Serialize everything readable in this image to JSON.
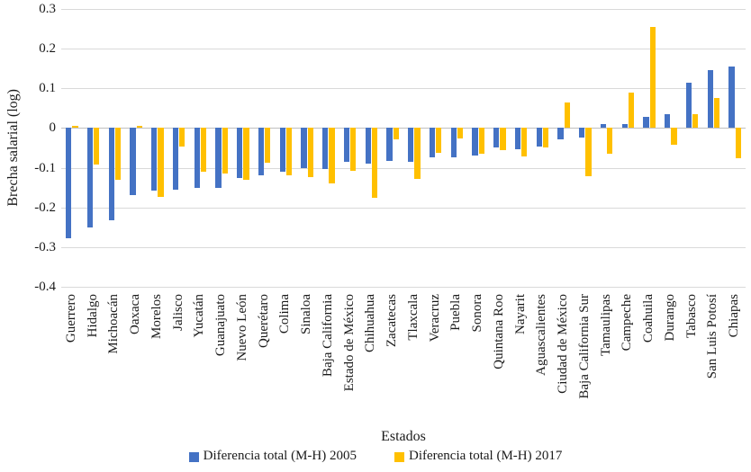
{
  "chart_data": {
    "type": "bar",
    "title": "",
    "xlabel": "Estados",
    "ylabel": "Brecha salarial (log)",
    "ylim": [
      -0.4,
      0.3
    ],
    "yticks": [
      0.3,
      0.2,
      0.1,
      0,
      -0.1,
      -0.2,
      -0.3,
      -0.4
    ],
    "ytick_labels": [
      "0.3",
      "0.2",
      "0.1",
      "0",
      "-0.1",
      "-0.2",
      "-0.3",
      "-0.4"
    ],
    "grid": true,
    "legend_position": "bottom",
    "categories": [
      "Guerrero",
      "Hidalgo",
      "Michoacán",
      "Oaxaca",
      "Morelos",
      "Jalisco",
      "Yucatán",
      "Guanajuato",
      "Nuevo León",
      "Querétaro",
      "Colima",
      "Sinaloa",
      "Baja California",
      "Estado de México",
      "Chihuahua",
      "Zacatecas",
      "Tlaxcala",
      "Veracruz",
      "Puebla",
      "Sonora",
      "Quintana Roo",
      "Nayarit",
      "Aguascalientes",
      "Ciudad de México",
      "Baja California Sur",
      "Tamaulipas",
      "Campeche",
      "Coahuila",
      "Durango",
      "Tabasco",
      "San Luis Potosí",
      "Chiapas"
    ],
    "series": [
      {
        "name": "Diferencia total (M-H) 2005",
        "color": "#4472C4",
        "values": [
          -0.278,
          -0.25,
          -0.232,
          -0.17,
          -0.157,
          -0.155,
          -0.15,
          -0.15,
          -0.126,
          -0.118,
          -0.11,
          -0.101,
          -0.104,
          -0.086,
          -0.089,
          -0.083,
          -0.085,
          -0.073,
          -0.073,
          -0.069,
          -0.05,
          -0.053,
          -0.047,
          -0.028,
          -0.023,
          0.01,
          0.011,
          0.029,
          0.036,
          0.115,
          0.147,
          0.155
        ]
      },
      {
        "name": "Diferencia total (M-H) 2017",
        "color": "#FFC000",
        "values": [
          0.005,
          -0.091,
          -0.13,
          0.006,
          -0.174,
          -0.046,
          -0.11,
          -0.114,
          -0.13,
          -0.088,
          -0.12,
          -0.123,
          -0.14,
          -0.108,
          -0.175,
          -0.028,
          -0.128,
          -0.063,
          -0.026,
          -0.065,
          -0.056,
          -0.071,
          -0.048,
          0.065,
          -0.121,
          -0.064,
          0.09,
          0.254,
          -0.042,
          0.035,
          0.075,
          -0.077
        ]
      }
    ]
  },
  "colors": {
    "grid": "#d9d9d9",
    "zero_axis": "#bfbfbf",
    "text": "#1a1a1a",
    "background": "#ffffff"
  }
}
